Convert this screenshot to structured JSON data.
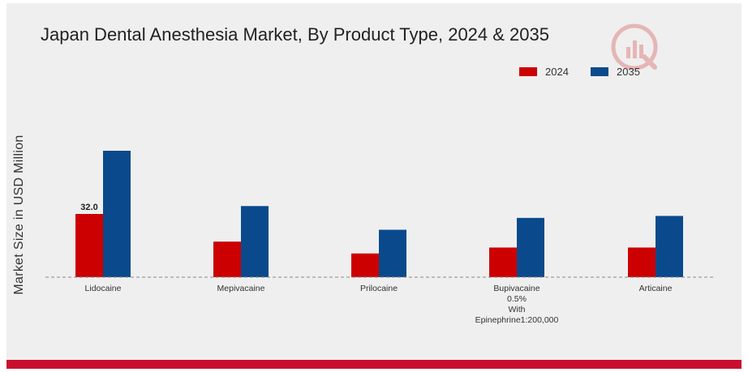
{
  "chart_data": {
    "type": "bar",
    "title": "Japan Dental Anesthesia Market, By Product Type, 2024 & 2035",
    "xlabel": "",
    "ylabel": "Market Size in USD Million",
    "categories": [
      [
        "Lidocaine"
      ],
      [
        "Mepivacaine"
      ],
      [
        "Prilocaine"
      ],
      [
        "Bupivacaine",
        "0.5%",
        "With",
        "Epinephrine1:200,000"
      ],
      [
        "Articaine"
      ]
    ],
    "series": [
      {
        "name": "2024",
        "color": "#cc0000",
        "values": [
          32.0,
          18.0,
          12.0,
          15.0,
          15.0
        ]
      },
      {
        "name": "2035",
        "color": "#0a4a8c",
        "values": [
          64.0,
          36.0,
          24.0,
          30.0,
          31.0
        ]
      }
    ],
    "data_labels": [
      {
        "series": 0,
        "index": 0,
        "text": "32.0"
      }
    ],
    "ylim": [
      0,
      80
    ],
    "grid": false,
    "legend_position": "top-right"
  }
}
